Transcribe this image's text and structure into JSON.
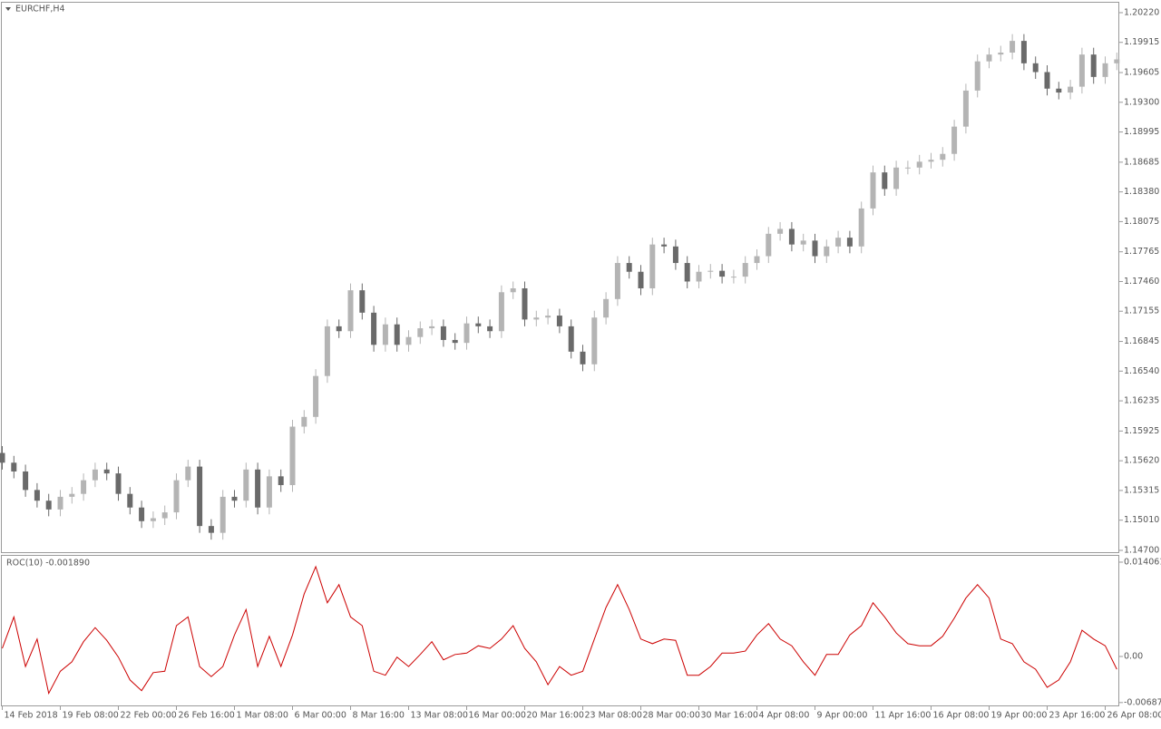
{
  "chart_data": [
    {
      "type": "candlestick",
      "title": "EURCHF,H4",
      "categories": [
        "14 Feb 2018",
        null,
        null,
        null,
        null,
        "19 Feb 08:00",
        null,
        null,
        null,
        null,
        "22 Feb 00:00",
        null,
        null,
        null,
        null,
        "26 Feb 16:00",
        null,
        null,
        null,
        null,
        "1 Mar 08:00",
        null,
        null,
        null,
        null,
        "6 Mar 00:00",
        null,
        null,
        null,
        null,
        "8 Mar 16:00",
        null,
        null,
        null,
        null,
        "13 Mar 08:00",
        null,
        null,
        null,
        null,
        "16 Mar 00:00",
        null,
        null,
        null,
        null,
        "20 Mar 16:00",
        null,
        null,
        null,
        null,
        "23 Mar 08:00",
        null,
        null,
        null,
        null,
        "28 Mar 00:00",
        null,
        null,
        null,
        null,
        "30 Mar 16:00",
        null,
        null,
        null,
        null,
        "4 Apr 08:00",
        null,
        null,
        null,
        null,
        "9 Apr 00:00",
        null,
        null,
        null,
        null,
        "11 Apr 16:00",
        null,
        null,
        null,
        null,
        "16 Apr 08:00",
        null,
        null,
        null,
        null,
        "19 Apr 00:00",
        null,
        null,
        null,
        null,
        "23 Apr 16:00",
        null,
        null,
        null,
        null,
        "26 Apr 08:00",
        null
      ],
      "open": [
        1.157,
        1.156,
        1.1551,
        1.1532,
        1.1521,
        1.1512,
        1.1525,
        1.1528,
        1.1542,
        1.1553,
        1.1549,
        1.1528,
        1.1514,
        1.15,
        1.1503,
        1.1509,
        1.1542,
        1.1556,
        1.1495,
        1.1488,
        1.1525,
        1.1521,
        1.1553,
        1.1514,
        1.1546,
        1.1537,
        1.1597,
        1.1607,
        1.1649,
        1.17,
        1.1695,
        1.1737,
        1.1714,
        1.1681,
        1.1702,
        1.1681,
        1.1689,
        1.1698,
        1.17,
        1.1686,
        1.1683,
        1.1703,
        1.17,
        1.1695,
        1.1735,
        1.1739,
        1.1707,
        1.1709,
        1.1711,
        1.17,
        1.1674,
        1.1661,
        1.1709,
        1.1728,
        1.1765,
        1.1756,
        1.1739,
        1.1784,
        1.1782,
        1.1765,
        1.1746,
        1.1756,
        1.1757,
        1.1751,
        1.1751,
        1.1765,
        1.1772,
        1.1795,
        1.18,
        1.1784,
        1.1788,
        1.1772,
        1.1782,
        1.1791,
        1.1782,
        1.1821,
        1.1858,
        1.1841,
        1.1863,
        1.1863,
        1.1869,
        1.1871,
        1.1877,
        1.1905,
        1.1942,
        1.1972,
        1.1979,
        1.1981,
        1.1993,
        1.197,
        1.1961,
        1.1944,
        1.194,
        1.1946,
        1.1979,
        1.1956,
        1.197
      ],
      "high": [
        1.1577,
        1.1567,
        1.1558,
        1.1539,
        1.1528,
        1.1532,
        1.1535,
        1.1549,
        1.156,
        1.156,
        1.1556,
        1.1535,
        1.1521,
        1.151,
        1.1516,
        1.1549,
        1.1563,
        1.1563,
        1.1502,
        1.1532,
        1.1532,
        1.156,
        1.156,
        1.1553,
        1.1553,
        1.1604,
        1.1614,
        1.1656,
        1.1707,
        1.1707,
        1.1744,
        1.1744,
        1.1721,
        1.1709,
        1.1709,
        1.1696,
        1.1705,
        1.1707,
        1.1707,
        1.1693,
        1.171,
        1.171,
        1.1707,
        1.1742,
        1.1746,
        1.1746,
        1.1716,
        1.1718,
        1.1718,
        1.1707,
        1.1681,
        1.1716,
        1.1735,
        1.1772,
        1.1772,
        1.1763,
        1.1791,
        1.1791,
        1.1789,
        1.1772,
        1.1763,
        1.1764,
        1.1764,
        1.1758,
        1.1772,
        1.1779,
        1.1802,
        1.1807,
        1.1807,
        1.1795,
        1.1795,
        1.1789,
        1.1798,
        1.1798,
        1.1828,
        1.1865,
        1.1865,
        1.187,
        1.187,
        1.1876,
        1.1878,
        1.1884,
        1.1912,
        1.1949,
        1.1979,
        1.1986,
        1.1988,
        1.2,
        1.2,
        1.1977,
        1.1968,
        1.1951,
        1.1953,
        1.1986,
        1.1986,
        1.1977,
        1.1981
      ],
      "low": [
        1.1553,
        1.1544,
        1.1525,
        1.1514,
        1.1505,
        1.1505,
        1.1518,
        1.1521,
        1.1535,
        1.1542,
        1.1521,
        1.1507,
        1.1493,
        1.1493,
        1.1496,
        1.1502,
        1.1535,
        1.1488,
        1.1481,
        1.1481,
        1.1514,
        1.1514,
        1.1507,
        1.1507,
        1.153,
        1.153,
        1.159,
        1.16,
        1.1642,
        1.1688,
        1.1688,
        1.1707,
        1.1674,
        1.1674,
        1.1674,
        1.1674,
        1.1682,
        1.1691,
        1.1679,
        1.1676,
        1.1676,
        1.1693,
        1.1688,
        1.1688,
        1.1728,
        1.17,
        1.17,
        1.1702,
        1.1693,
        1.1667,
        1.1654,
        1.1654,
        1.1702,
        1.1721,
        1.1749,
        1.1732,
        1.1732,
        1.1775,
        1.1758,
        1.1739,
        1.1739,
        1.1749,
        1.1744,
        1.1744,
        1.1744,
        1.1758,
        1.1765,
        1.1788,
        1.1777,
        1.1777,
        1.1765,
        1.1765,
        1.1775,
        1.1775,
        1.1775,
        1.1814,
        1.1834,
        1.1834,
        1.1856,
        1.1856,
        1.1862,
        1.1864,
        1.187,
        1.1898,
        1.1935,
        1.1965,
        1.1972,
        1.1974,
        1.1963,
        1.1954,
        1.1937,
        1.1933,
        1.1933,
        1.1939,
        1.1949,
        1.1949,
        1.1963
      ],
      "close": [
        1.156,
        1.1551,
        1.1532,
        1.1521,
        1.1512,
        1.1525,
        1.1528,
        1.1542,
        1.1553,
        1.1549,
        1.1528,
        1.1514,
        1.15,
        1.1503,
        1.1509,
        1.1542,
        1.1556,
        1.1495,
        1.1488,
        1.1525,
        1.1521,
        1.1553,
        1.1514,
        1.1546,
        1.1537,
        1.1597,
        1.1607,
        1.1649,
        1.17,
        1.1695,
        1.1737,
        1.1714,
        1.1681,
        1.1702,
        1.1681,
        1.1689,
        1.1698,
        1.17,
        1.1686,
        1.1683,
        1.1703,
        1.17,
        1.1695,
        1.1735,
        1.1739,
        1.1707,
        1.1709,
        1.1711,
        1.17,
        1.1674,
        1.1661,
        1.1709,
        1.1728,
        1.1765,
        1.1756,
        1.1739,
        1.1784,
        1.1782,
        1.1765,
        1.1746,
        1.1756,
        1.1757,
        1.1751,
        1.1751,
        1.1765,
        1.1772,
        1.1795,
        1.18,
        1.1784,
        1.1788,
        1.1772,
        1.1782,
        1.1791,
        1.1782,
        1.1821,
        1.1858,
        1.1841,
        1.1863,
        1.1863,
        1.1869,
        1.1871,
        1.1877,
        1.1905,
        1.1942,
        1.1972,
        1.1979,
        1.1981,
        1.1993,
        1.197,
        1.1961,
        1.1944,
        1.194,
        1.1946,
        1.1979,
        1.1956,
        1.197,
        1.1974
      ],
      "up_color": "#b4b4b4",
      "down_color": "#6a6a6a",
      "ylim": [
        1.14672,
        1.20322
      ],
      "yticks": [
        {
          "value": 1.2022,
          "label": "1.20220"
        },
        1.19915,
        1.19605,
        {
          "value": 1.193,
          "label": "1.19300"
        },
        1.18995,
        1.18685,
        {
          "value": 1.1838,
          "label": "1.18380"
        },
        1.18075,
        1.17765,
        {
          "value": 1.1746,
          "label": "1.17460"
        },
        1.17155,
        1.16845,
        {
          "value": 1.1654,
          "label": "1.16540"
        },
        1.16235,
        1.15925,
        {
          "value": 1.1562,
          "label": "1.15620"
        },
        1.15315,
        {
          "value": 1.1501,
          "label": "1.15010"
        },
        {
          "value": 1.147,
          "label": "1.14700"
        }
      ]
    },
    {
      "type": "line",
      "title": "ROC(10) -0.001890",
      "color": "#cc0000",
      "values": [
        0.0012,
        0.0059,
        -0.0015,
        0.0026,
        -0.0055,
        -0.0022,
        -0.0008,
        0.0022,
        0.0043,
        0.0024,
        -0.0001,
        -0.0035,
        -0.0051,
        -0.0024,
        -0.0022,
        0.0046,
        0.0059,
        -0.0015,
        -0.003,
        -0.0015,
        0.0032,
        0.007,
        -0.0015,
        0.003,
        -0.0015,
        0.0032,
        0.0093,
        0.0134,
        0.008,
        0.0107,
        0.0059,
        0.0046,
        -0.0022,
        -0.0028,
        -0.0001,
        -0.0015,
        0.0003,
        0.0022,
        -0.0005,
        0.0003,
        0.0005,
        0.0016,
        0.0012,
        0.0026,
        0.0046,
        0.0012,
        -0.0008,
        -0.0042,
        -0.0015,
        -0.0028,
        -0.0022,
        0.0026,
        0.0073,
        0.0107,
        0.007,
        0.0026,
        0.0019,
        0.0026,
        0.0024,
        -0.0028,
        -0.0028,
        -0.0015,
        0.0005,
        0.0005,
        0.0008,
        0.0032,
        0.0049,
        0.0026,
        0.0016,
        -0.0008,
        -0.0028,
        0.0003,
        0.0003,
        0.0032,
        0.0046,
        0.008,
        0.0059,
        0.0035,
        0.0019,
        0.0016,
        0.0016,
        0.003,
        0.0057,
        0.0087,
        0.0107,
        0.0087,
        0.0026,
        0.0019,
        -0.0008,
        -0.0019,
        -0.0046,
        -0.0035,
        -0.0008,
        0.0039,
        0.0026,
        0.0016,
        -0.0019
      ],
      "ylim": [
        -0.0073,
        0.01514
      ],
      "yticks": [
        0.014061,
        {
          "value": 0,
          "label": "0.00"
        },
        -0.006872
      ]
    }
  ]
}
